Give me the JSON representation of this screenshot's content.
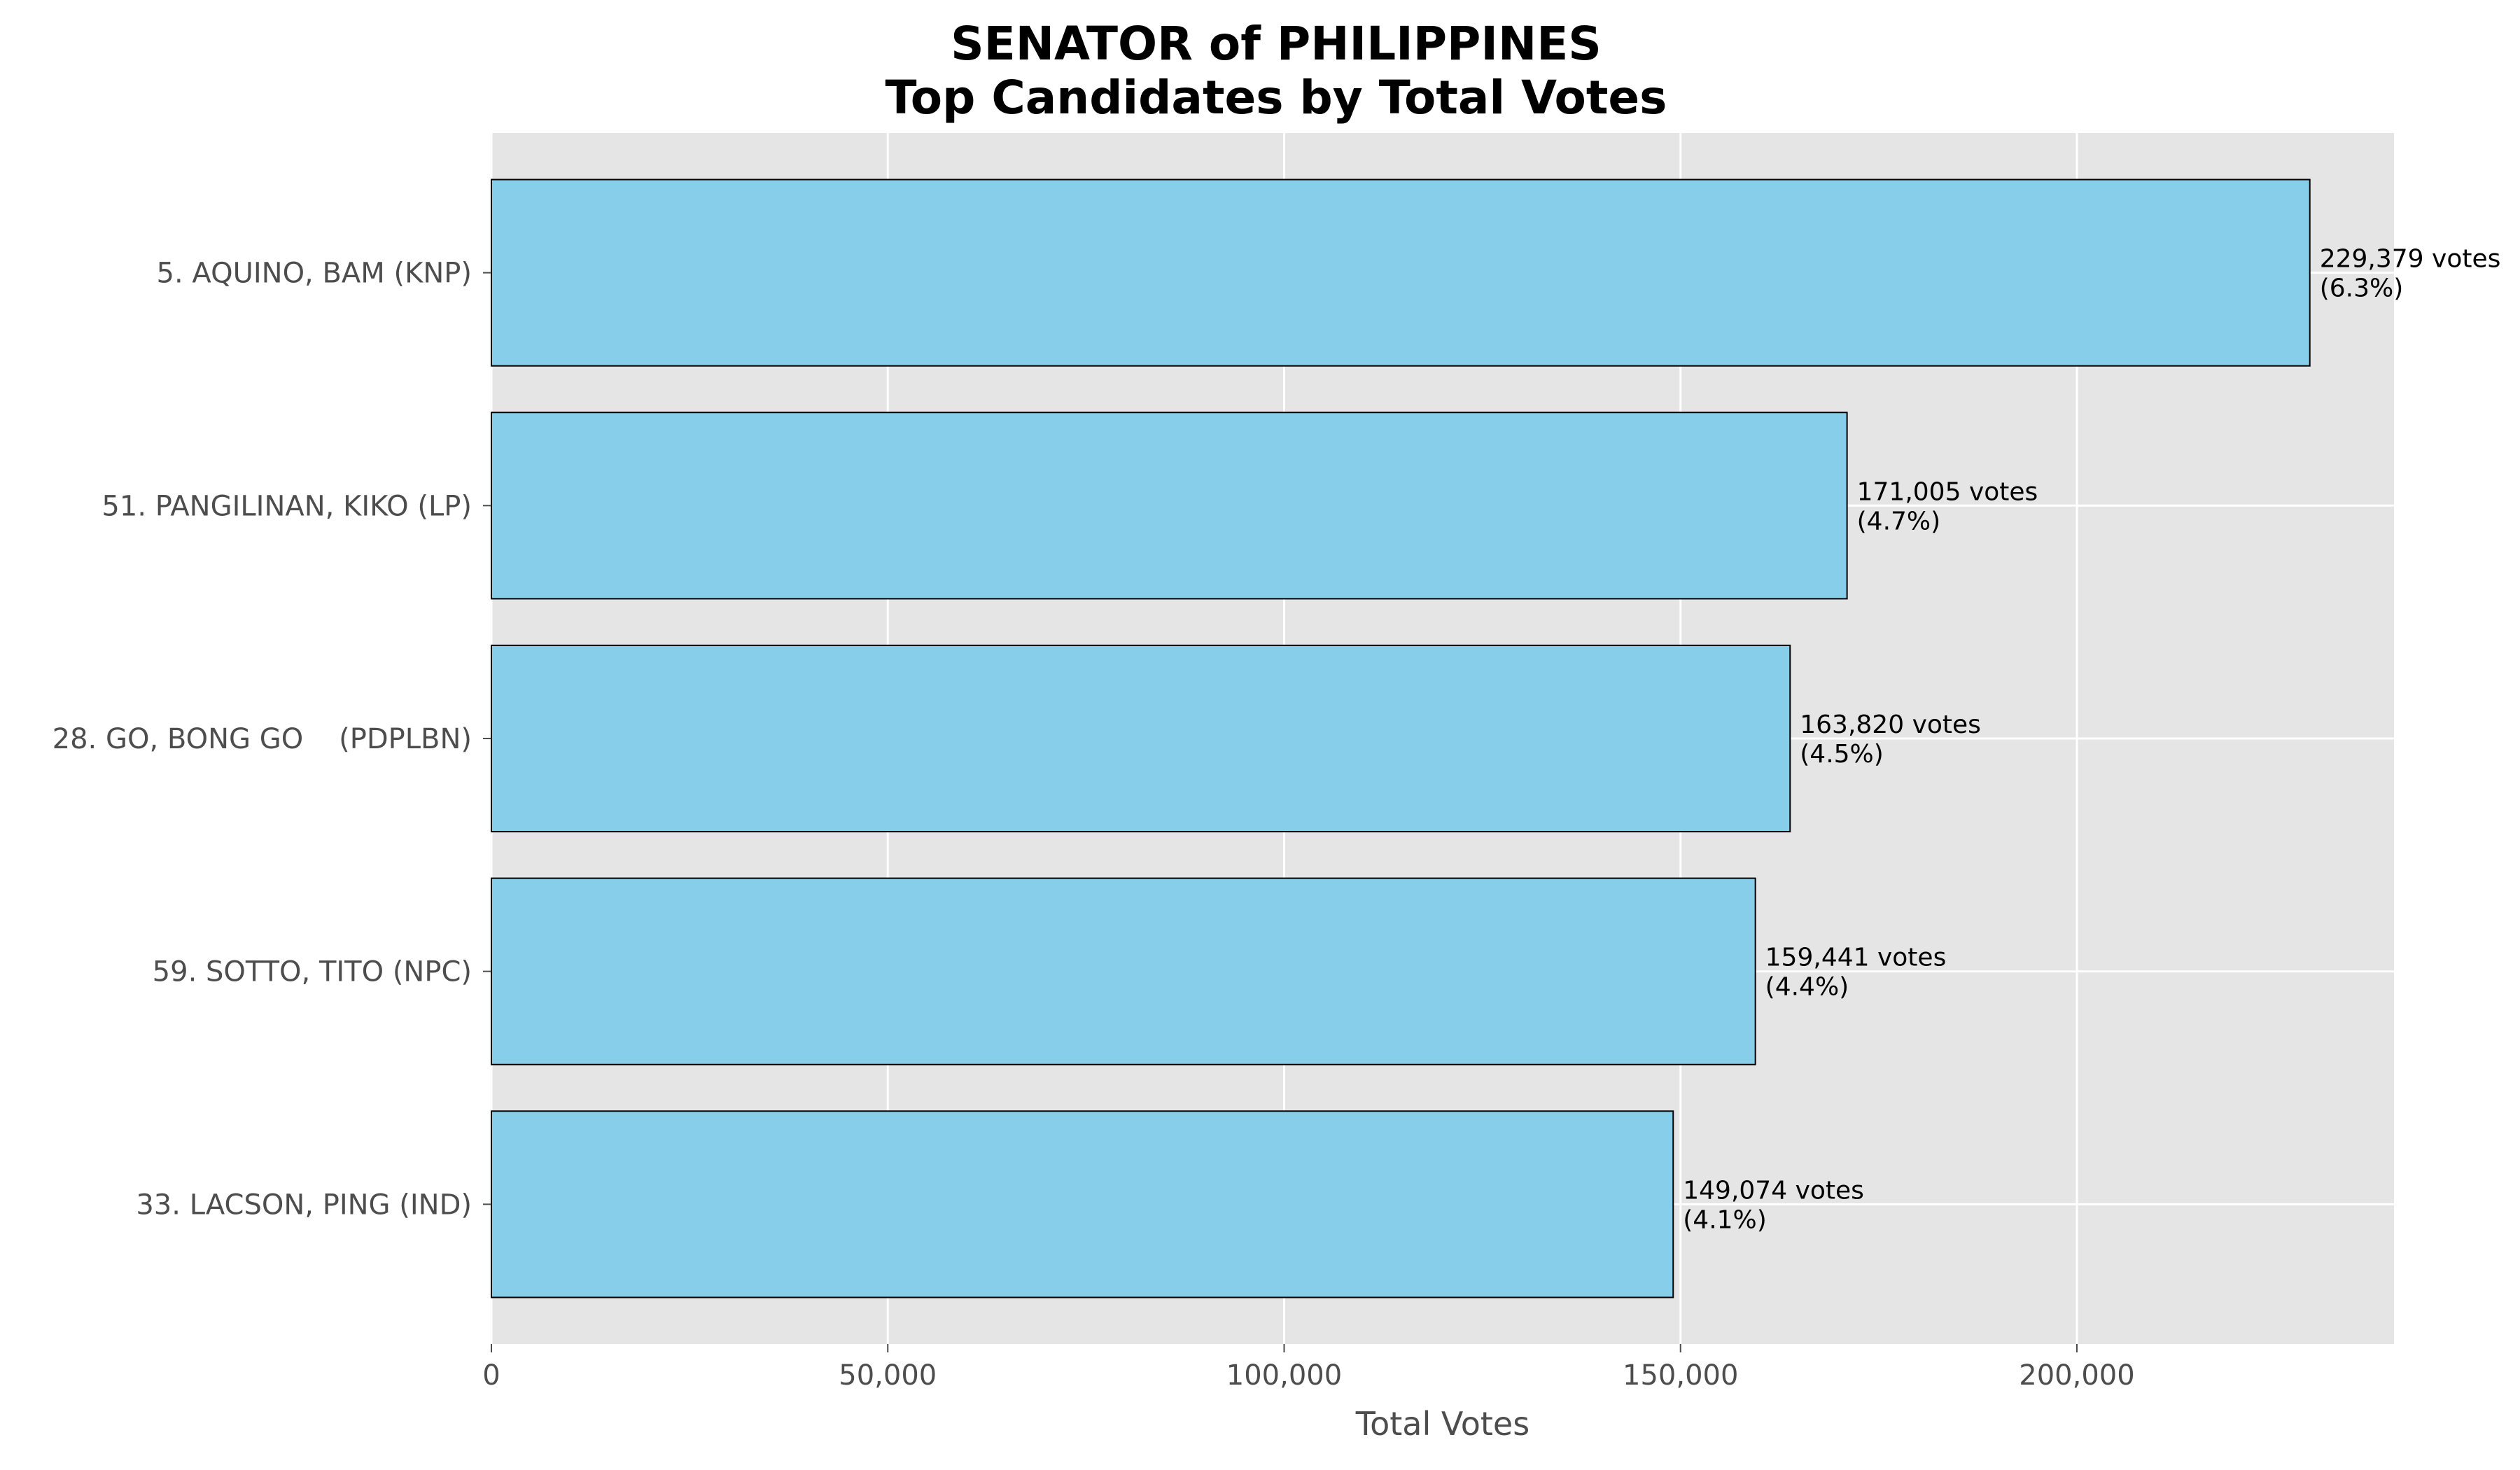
{
  "chart_data": {
    "type": "bar",
    "orientation": "horizontal",
    "title_line1": "SENATOR of PHILIPPINES",
    "title_line2": "Top Candidates by Total Votes",
    "xlabel": "Total Votes",
    "ylabel": "",
    "xlim": [
      0,
      240000
    ],
    "xticks": [
      0,
      50000,
      100000,
      150000,
      200000
    ],
    "xtick_labels": [
      "0",
      "50,000",
      "100,000",
      "150,000",
      "200,000"
    ],
    "grid": true,
    "bar_color": "#87ceeb",
    "background_color": "#e5e5e5",
    "bars": [
      {
        "category": "5. AQUINO, BAM (KNP)",
        "value": 229379,
        "votes_label": "229,379 votes",
        "pct_label": "(6.3%)"
      },
      {
        "category": "51. PANGILINAN, KIKO (LP)",
        "value": 171005,
        "votes_label": "171,005 votes",
        "pct_label": "(4.7%)"
      },
      {
        "category": "28. GO, BONG GO    (PDPLBN)",
        "value": 163820,
        "votes_label": "163,820 votes",
        "pct_label": "(4.5%)"
      },
      {
        "category": "59. SOTTO, TITO (NPC)",
        "value": 159441,
        "votes_label": "159,441 votes",
        "pct_label": "(4.4%)"
      },
      {
        "category": "33. LACSON, PING (IND)",
        "value": 149074,
        "votes_label": "149,074 votes",
        "pct_label": "(4.1%)"
      }
    ]
  }
}
